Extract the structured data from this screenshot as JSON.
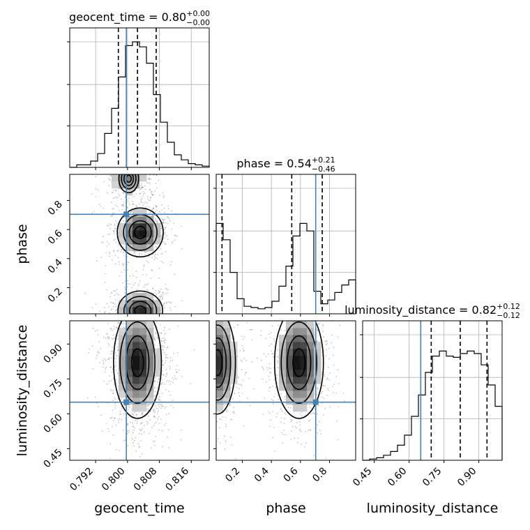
{
  "chart_data": {
    "type": "corner",
    "parameters": [
      {
        "name": "geocent_time",
        "xlabel": "geocent_time",
        "ylabel": "",
        "title_main": "geocent_time = 0.80",
        "title_sup": "+0.00",
        "title_sub": "−0.00",
        "range": [
          0.7855,
          0.8205
        ],
        "ticks": [
          0.792,
          0.8,
          0.808,
          0.816
        ],
        "tick_labels": [
          "0.792",
          "0.800",
          "0.808",
          "0.816"
        ],
        "truth": 0.7997,
        "quantiles": [
          0.7977,
          0.8025,
          0.8072
        ],
        "hist": [
          0,
          0.02,
          0.02,
          0.05,
          0.11,
          0.27,
          0.47,
          0.72,
          0.97,
          1.0,
          0.96,
          0.83,
          0.58,
          0.36,
          0.2,
          0.1,
          0.06,
          0.03,
          0.02,
          0.01
        ]
      },
      {
        "name": "phase",
        "xlabel": "phase",
        "ylabel": "phase",
        "title_main": "phase = 0.54",
        "title_sup": "+0.21",
        "title_sub": "−0.46",
        "range": [
          0.02,
          0.98
        ],
        "ticks": [
          0.2,
          0.4,
          0.6,
          0.8
        ],
        "tick_labels": [
          "0.2",
          "0.4",
          "0.6",
          "0.8"
        ],
        "truth": 0.705,
        "quantiles": [
          0.06,
          0.54,
          0.75
        ],
        "hist": [
          0.72,
          0.59,
          0.33,
          0.12,
          0.06,
          0.05,
          0.04,
          0.05,
          0.1,
          0.22,
          0.38,
          0.62,
          0.72,
          0.66,
          0.18,
          0.08,
          0.11,
          0.17,
          0.23,
          0.27
        ]
      },
      {
        "name": "luminosity_distance",
        "xlabel": "luminosity_distance",
        "ylabel": "luminosity_distance",
        "title_main": "luminosity_distance = 0.82",
        "title_sup": "+0.12",
        "title_sub": "−0.12",
        "range": [
          0.4,
          1.0
        ],
        "ticks": [
          0.45,
          0.6,
          0.75,
          0.9
        ],
        "tick_labels": [
          "0.45",
          "0.60",
          "0.75",
          "0.90"
        ],
        "truth": 0.65,
        "quantiles": [
          0.695,
          0.82,
          0.935
        ],
        "hist": [
          0.0,
          0.01,
          0.02,
          0.04,
          0.07,
          0.12,
          0.2,
          0.35,
          0.52,
          0.7,
          0.83,
          0.87,
          0.83,
          0.82,
          0.85,
          0.87,
          0.85,
          0.76,
          0.6,
          0.43
        ]
      }
    ],
    "pairs": [
      {
        "x": 0,
        "y": 1,
        "peaks": [
          {
            "x": 0.8032,
            "y": 0.58,
            "sx": 0.0024,
            "sy": 0.07,
            "w": 1.0
          },
          {
            "x": 0.8032,
            "y": 0.04,
            "sx": 0.0026,
            "sy": 0.06,
            "w": 0.9
          },
          {
            "x": 0.8003,
            "y": 0.95,
            "sx": 0.0023,
            "sy": 0.06,
            "w": 0.45
          }
        ]
      },
      {
        "x": 0,
        "y": 2,
        "peaks": [
          {
            "x": 0.8025,
            "y": 0.82,
            "sx": 0.0025,
            "sy": 0.1,
            "w": 1.0
          }
        ]
      },
      {
        "x": 1,
        "y": 2,
        "peaks": [
          {
            "x": 0.59,
            "y": 0.82,
            "sx": 0.07,
            "sy": 0.1,
            "w": 1.0
          },
          {
            "x": 0.03,
            "y": 0.82,
            "sx": 0.06,
            "sy": 0.1,
            "w": 0.85
          }
        ]
      }
    ],
    "truth_color": "#4682b4",
    "grid": true
  }
}
